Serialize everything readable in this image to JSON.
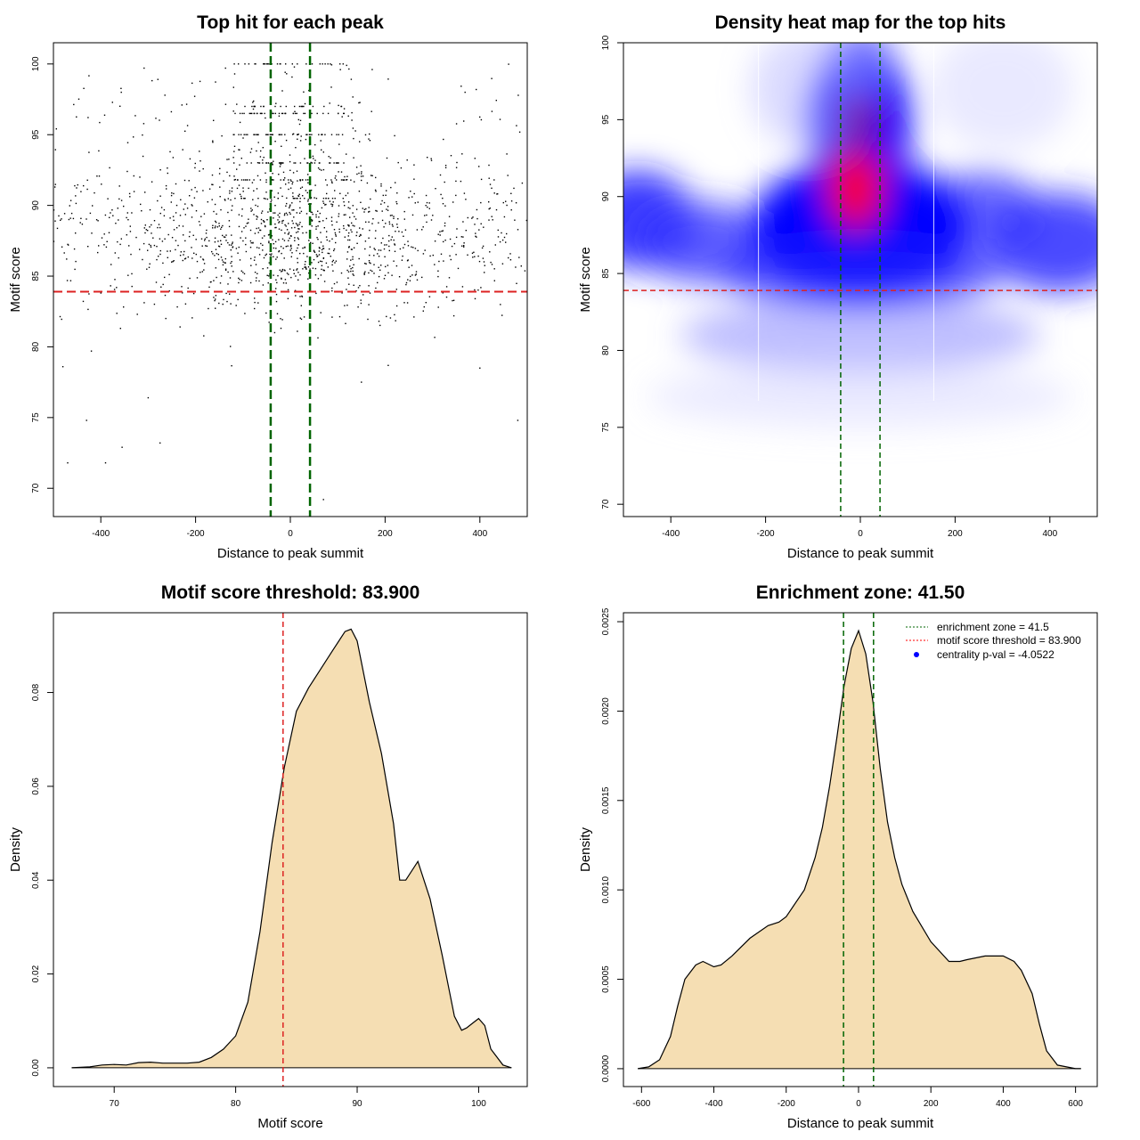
{
  "chart_data": [
    {
      "type": "scatter",
      "title": "Top hit for each peak",
      "xlabel": "Distance to peak summit",
      "ylabel": "Motif score",
      "xlim": [
        -500,
        500
      ],
      "ylim": [
        68,
        101.5
      ],
      "xticks": [
        -400,
        -200,
        0,
        200,
        400
      ],
      "yticks": [
        70,
        75,
        80,
        85,
        90,
        95,
        100
      ],
      "reference_lines": {
        "enrichment_zone_x": [
          -41.5,
          41.5
        ],
        "threshold_y": 83.9
      },
      "point_distribution": {
        "n": 1700,
        "x_range": [
          -500,
          500
        ],
        "score_range": [
          69,
          100
        ],
        "center_cluster_sd_x": 120,
        "main_mode_score": 88,
        "discrete_score_levels": [
          100,
          97,
          96.5,
          95,
          93,
          91.8,
          90.5
        ]
      },
      "sample_points": [
        {
          "x": -470,
          "y": 71.8
        },
        {
          "x": -390,
          "y": 71.8
        },
        {
          "x": 70,
          "y": 69.2
        },
        {
          "x": -430,
          "y": 74.8
        },
        {
          "x": 480,
          "y": 74.8
        },
        {
          "x": -300,
          "y": 76.4
        },
        {
          "x": -355,
          "y": 72.9
        },
        {
          "x": -275,
          "y": 73.2
        },
        {
          "x": 150,
          "y": 77.5
        },
        {
          "x": 400,
          "y": 78.5
        },
        {
          "x": -480,
          "y": 78.6
        },
        {
          "x": -420,
          "y": 79.7
        }
      ]
    },
    {
      "type": "heatmap",
      "title": "Density heat map for the top hits",
      "xlabel": "Distance to peak summit",
      "ylabel": "Motif score",
      "xlim": [
        -500,
        500
      ],
      "ylim": [
        69.2,
        100
      ],
      "xticks": [
        -400,
        -200,
        0,
        200,
        400
      ],
      "yticks": [
        70,
        75,
        80,
        85,
        90,
        95,
        100
      ],
      "colormap": [
        "#ffffff",
        "#0000ff",
        "#ff0000"
      ],
      "density_peaks": [
        {
          "x": -10,
          "y": 90.5,
          "level": "max"
        },
        {
          "x": 0,
          "y": 95,
          "level": "high"
        },
        {
          "x": -470,
          "y": 88.5,
          "level": "medium"
        },
        {
          "x": 420,
          "y": 87,
          "level": "medium"
        }
      ],
      "reference_lines": {
        "enrichment_zone_x": [
          -41.5,
          41.5
        ],
        "threshold_y": 83.9
      }
    },
    {
      "type": "area",
      "title": "Motif score threshold: 83.900",
      "xlabel": "Motif score",
      "ylabel": "Density",
      "xlim": [
        65,
        104
      ],
      "ylim": [
        -0.004,
        0.097
      ],
      "xticks": [
        70,
        80,
        90,
        100
      ],
      "yticks": [
        0.0,
        0.02,
        0.04,
        0.06,
        0.08
      ],
      "ytick_labels": [
        "0.00",
        "0.02",
        "0.04",
        "0.06",
        "0.08"
      ],
      "threshold_x": 83.9,
      "fill_color": "#f5deb3",
      "x": [
        66.5,
        68,
        69,
        70,
        71,
        72,
        73,
        74,
        75,
        76,
        77,
        78,
        79,
        80,
        81,
        82,
        83,
        84,
        85,
        86,
        87,
        88,
        89,
        89.5,
        90,
        91,
        92,
        93,
        93.5,
        94,
        95,
        96,
        97,
        98,
        98.6,
        99,
        99.5,
        100,
        100.5,
        101,
        102,
        102.7
      ],
      "y": [
        0,
        0.0002,
        0.0006,
        0.0007,
        0.0006,
        0.0011,
        0.0012,
        0.001,
        0.001,
        0.001,
        0.0012,
        0.0022,
        0.004,
        0.0068,
        0.014,
        0.029,
        0.048,
        0.064,
        0.076,
        0.081,
        0.085,
        0.089,
        0.093,
        0.0935,
        0.091,
        0.078,
        0.067,
        0.052,
        0.04,
        0.04,
        0.044,
        0.036,
        0.024,
        0.011,
        0.008,
        0.0085,
        0.0095,
        0.0105,
        0.009,
        0.004,
        0.0006,
        0
      ]
    },
    {
      "type": "area",
      "title": "Enrichment zone: 41.50",
      "xlabel": "Distance to peak summit",
      "ylabel": "Density",
      "xlim": [
        -650,
        660
      ],
      "ylim": [
        -0.0001,
        0.00255
      ],
      "xticks": [
        -600,
        -400,
        -200,
        0,
        200,
        400,
        600
      ],
      "yticks": [
        0,
        0.0005,
        0.001,
        0.0015,
        0.002,
        0.0025
      ],
      "ytick_labels": [
        "0.0000",
        "0.0005",
        "0.0010",
        "0.0015",
        "0.0020",
        "0.0025"
      ],
      "enrichment_zone_x": [
        -41.5,
        41.5
      ],
      "fill_color": "#f5deb3",
      "legend": {
        "position": "top-right",
        "items": [
          {
            "label": "enrichment zone = 41.5",
            "color": "#006400",
            "style": "dotted-line"
          },
          {
            "label": "motif score threshold = 83.900",
            "color": "#ff0000",
            "style": "dotted-line"
          },
          {
            "label": "centrality p-val = -4.0522",
            "color": "#0000ff",
            "style": "point"
          }
        ]
      },
      "x": [
        -610,
        -580,
        -550,
        -520,
        -500,
        -480,
        -450,
        -430,
        -400,
        -380,
        -350,
        -300,
        -250,
        -220,
        -200,
        -150,
        -120,
        -100,
        -80,
        -60,
        -40,
        -20,
        0,
        20,
        40,
        60,
        80,
        100,
        120,
        150,
        200,
        250,
        280,
        300,
        350,
        400,
        430,
        450,
        480,
        500,
        520,
        550,
        600,
        615
      ],
      "y": [
        0,
        1e-05,
        5e-05,
        0.00018,
        0.00035,
        0.0005,
        0.00058,
        0.0006,
        0.00057,
        0.00058,
        0.00063,
        0.00073,
        0.0008,
        0.00082,
        0.00085,
        0.001,
        0.00118,
        0.00135,
        0.00158,
        0.00185,
        0.00214,
        0.00235,
        0.00245,
        0.00232,
        0.00205,
        0.00168,
        0.00138,
        0.00118,
        0.00103,
        0.00088,
        0.00071,
        0.0006,
        0.0006,
        0.00061,
        0.00063,
        0.00063,
        0.0006,
        0.00055,
        0.00042,
        0.00025,
        0.0001,
        2e-05,
        0,
        0
      ]
    }
  ]
}
